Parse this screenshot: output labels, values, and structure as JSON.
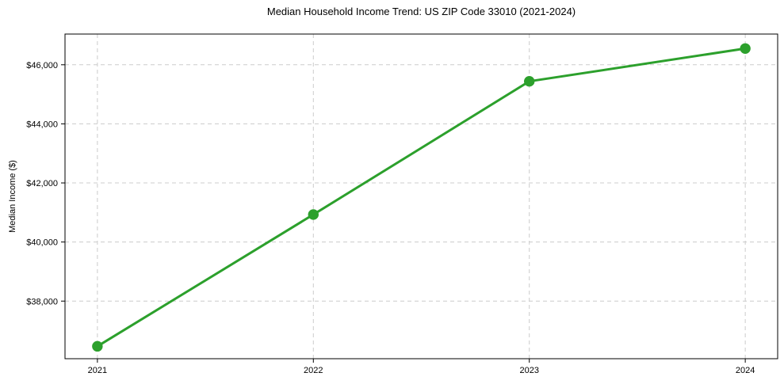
{
  "chart_data": {
    "type": "line",
    "title": "Median Household Income Trend: US ZIP Code 33010 (2021-2024)",
    "xlabel": "",
    "ylabel": "Median Income ($)",
    "x": [
      2021,
      2022,
      2023,
      2024
    ],
    "xtick_labels": [
      "2021",
      "2022",
      "2023",
      "2024"
    ],
    "yticks": [
      38000,
      40000,
      42000,
      44000,
      46000
    ],
    "ytick_labels": [
      "$38,000",
      "$40,000",
      "$42,000",
      "$44,000",
      "$46,000"
    ],
    "series": [
      {
        "name": "Median Household Income",
        "values": [
          36470,
          40930,
          45440,
          46550
        ],
        "color": "#2ca02c",
        "marker": "circle"
      }
    ],
    "xlim": [
      2020.85,
      2024.15
    ],
    "ylim": [
      36050,
      47040
    ],
    "grid": true,
    "grid_style": "dashed",
    "grid_color": "#cccccc",
    "spine_color": "#000000",
    "tick_color": "#000000",
    "text_color": "#000000",
    "background": "#ffffff",
    "legend_position": "none"
  }
}
